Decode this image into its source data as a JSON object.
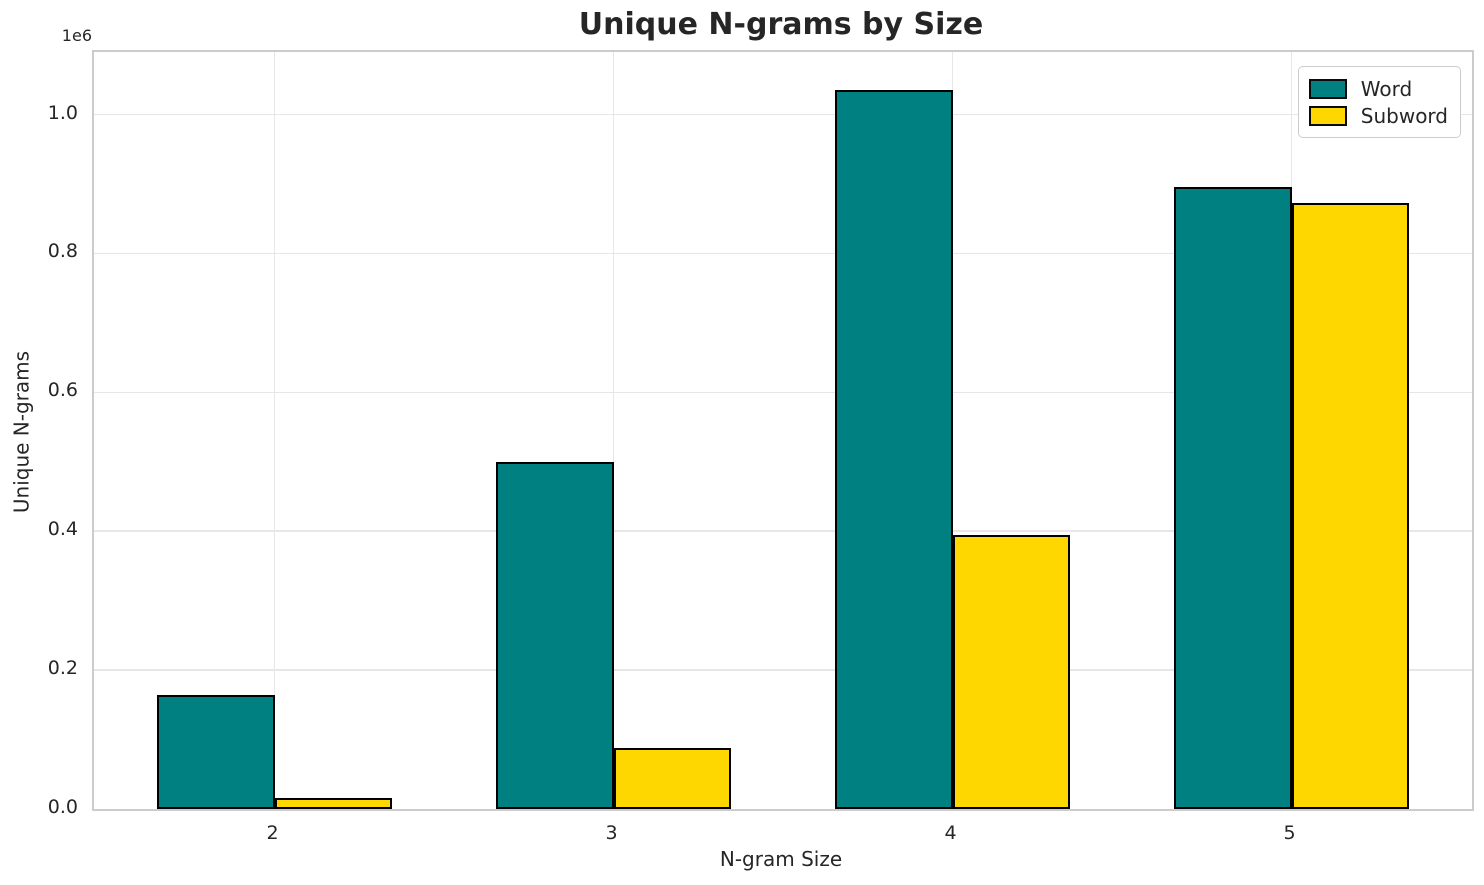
{
  "chart_data": {
    "type": "bar",
    "title": "Unique N-grams by Size",
    "xlabel": "N-gram Size",
    "ylabel": "Unique N-grams",
    "y_offset_label": "1e6",
    "categories": [
      "2",
      "3",
      "4",
      "5"
    ],
    "series": [
      {
        "name": "Word",
        "color": "#008080",
        "values": [
          164000,
          500000,
          1035000,
          896000
        ]
      },
      {
        "name": "Subword",
        "color": "#FFD700",
        "values": [
          16000,
          88000,
          395000,
          872000
        ]
      }
    ],
    "bar_edge_color": "#000000",
    "ylim": [
      0,
      1090000
    ],
    "yticks": [
      0,
      200000,
      400000,
      600000,
      800000,
      1000000
    ],
    "ytick_labels": [
      "0.0",
      "0.2",
      "0.4",
      "0.6",
      "0.8",
      "1.0"
    ],
    "grid": true,
    "grid_color": "#e7e7e7",
    "spine_color": "#cccccc",
    "text_color": "#262626",
    "legend_position": "upper right",
    "legend_labels": [
      "Word",
      "Subword"
    ]
  }
}
